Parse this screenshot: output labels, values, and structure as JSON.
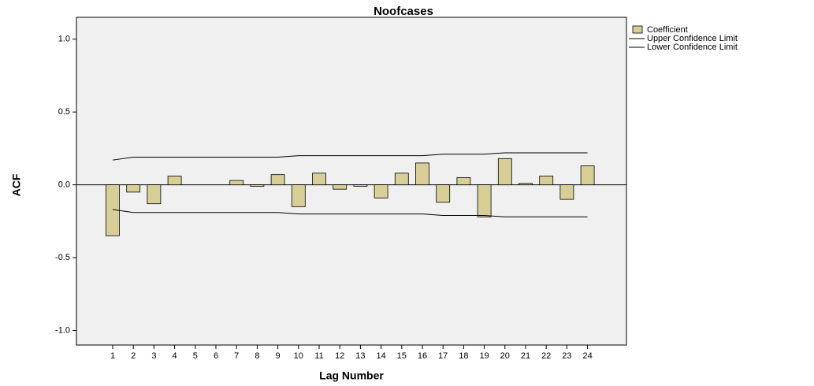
{
  "chart_data": {
    "type": "bar",
    "title": "Noofcases",
    "x_label": "Lag Number",
    "y_label": "ACF",
    "categories": [
      "1",
      "2",
      "3",
      "4",
      "5",
      "6",
      "7",
      "8",
      "9",
      "10",
      "11",
      "12",
      "13",
      "14",
      "15",
      "16",
      "17",
      "18",
      "19",
      "20",
      "21",
      "22",
      "23",
      "24"
    ],
    "series": [
      {
        "name": "Coefficient",
        "type": "bar",
        "color": "#d8ce98",
        "values": [
          -0.35,
          -0.05,
          -0.13,
          0.06,
          0.0,
          0.0,
          0.03,
          -0.01,
          0.07,
          -0.15,
          0.08,
          -0.03,
          -0.01,
          -0.09,
          0.08,
          0.15,
          -0.12,
          0.05,
          -0.22,
          0.18,
          0.01,
          0.06,
          -0.1,
          0.13
        ]
      },
      {
        "name": "Upper Confidence Limit",
        "type": "line",
        "color": "#000000",
        "values": [
          0.17,
          0.19,
          0.19,
          0.19,
          0.19,
          0.19,
          0.19,
          0.19,
          0.19,
          0.2,
          0.2,
          0.2,
          0.2,
          0.2,
          0.2,
          0.2,
          0.21,
          0.21,
          0.21,
          0.22,
          0.22,
          0.22,
          0.22,
          0.22
        ]
      },
      {
        "name": "Lower Confidence Limit",
        "type": "line",
        "color": "#000000",
        "values": [
          -0.17,
          -0.19,
          -0.19,
          -0.19,
          -0.19,
          -0.19,
          -0.19,
          -0.19,
          -0.19,
          -0.2,
          -0.2,
          -0.2,
          -0.2,
          -0.2,
          -0.2,
          -0.2,
          -0.21,
          -0.21,
          -0.21,
          -0.22,
          -0.22,
          -0.22,
          -0.22,
          -0.22
        ]
      }
    ],
    "ylim": [
      -1.1,
      1.15
    ],
    "yticks": [
      {
        "value": -1,
        "label": "-1.0"
      },
      {
        "value": -0.5,
        "label": "-0.5"
      },
      {
        "value": 0,
        "label": "0.0"
      },
      {
        "value": 0.5,
        "label": "0.5"
      },
      {
        "value": 1,
        "label": "1.0"
      }
    ],
    "reference_line": 0
  }
}
